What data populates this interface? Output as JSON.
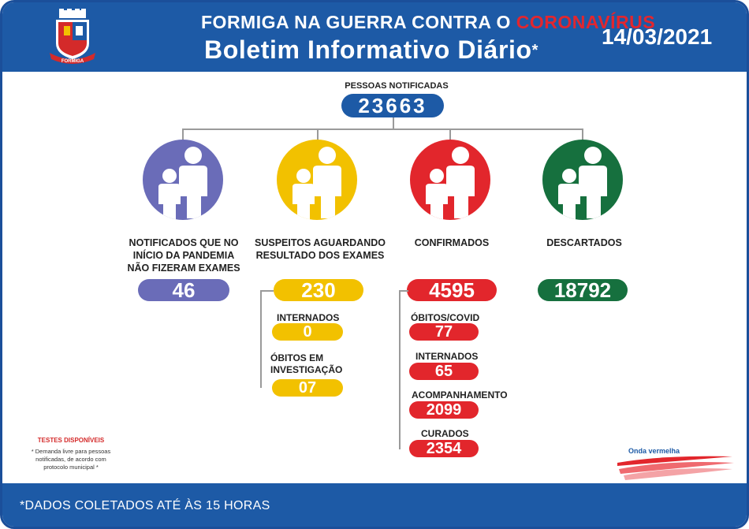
{
  "header": {
    "title_line1_a": "FORMIGA NA GUERRA CONTRA O ",
    "title_line1_b": "CORONAVÍRUS",
    "title_line2": "Boletim Informativo Diário",
    "asterisk": "*",
    "date": "14/03/2021",
    "emblem_text": "FORMIGA"
  },
  "total": {
    "label": "PESSOAS NOTIFICADAS",
    "value": "23663"
  },
  "categories": [
    {
      "label_lines": [
        "NOTIFICADOS QUE NO",
        "INÍCIO DA PANDEMIA",
        "NÃO FIZERAM EXAMES"
      ],
      "value": "46",
      "color": "#6a6cb8"
    },
    {
      "label_lines": [
        "SUSPEITOS AGUARDANDO",
        "RESULTADO DOS EXAMES"
      ],
      "value": "230",
      "color": "#f2c100"
    },
    {
      "label_lines": [
        "CONFIRMADOS"
      ],
      "value": "4595",
      "color": "#e2262c"
    },
    {
      "label_lines": [
        "DESCARTADOS"
      ],
      "value": "18792",
      "color": "#16703e"
    }
  ],
  "suspeitos_sub": [
    {
      "label_lines": [
        "INTERNADOS"
      ],
      "value": "0"
    },
    {
      "label_lines": [
        "ÓBITOS EM",
        "INVESTIGAÇÃO"
      ],
      "value": "07"
    }
  ],
  "confirmados_sub": [
    {
      "label": "ÓBITOS/COVID",
      "value": "77"
    },
    {
      "label": "INTERNADOS",
      "value": "65"
    },
    {
      "label": "ACOMPANHAMENTO",
      "value": "2099"
    },
    {
      "label": "CURADOS",
      "value": "2354"
    }
  ],
  "testes": {
    "title": "TESTES DISPONÍVEIS",
    "text_lines": [
      "* Demanda livre para pessoas",
      "notificadas, de acordo com",
      "protocolo municipal *"
    ]
  },
  "onda": {
    "label": "Onda vermelha"
  },
  "footer": {
    "note": "*DADOS COLETADOS ATÉ ÀS 15 HORAS"
  }
}
